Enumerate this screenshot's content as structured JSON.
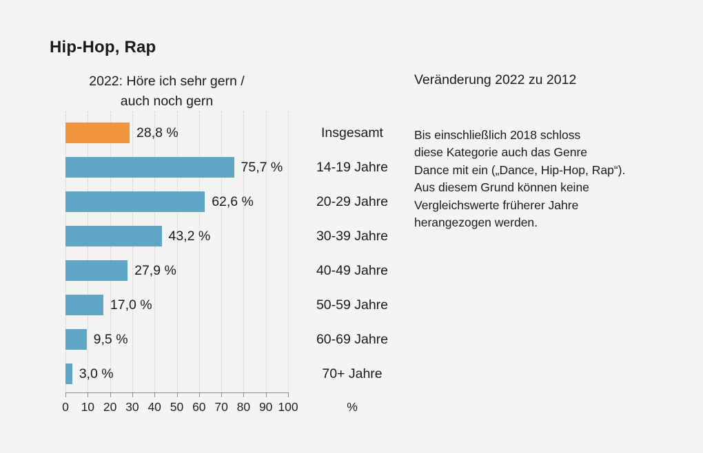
{
  "title": "Hip-Hop, Rap",
  "subtitle": "2022: Höre ich sehr gern /\nauch noch gern",
  "right_panel": {
    "heading": "Veränderung 2022 zu 2012",
    "note": "Bis einschließlich 2018 schloss\ndiese Kategorie auch das Genre\nDance mit ein („Dance, Hip-Hop, Rap“).\nAus diesem Grund können keine\nVergleichswerte früherer Jahre\nherangezogen werden."
  },
  "chart_data": {
    "type": "bar",
    "orientation": "horizontal",
    "title": "Hip-Hop, Rap",
    "subtitle": "2022: Höre ich sehr gern / auch noch gern",
    "categories": [
      "Insgesamt",
      "14-19 Jahre",
      "20-29 Jahre",
      "30-39 Jahre",
      "40-49 Jahre",
      "50-59 Jahre",
      "60-69 Jahre",
      "70+ Jahre"
    ],
    "values": [
      28.8,
      75.7,
      62.6,
      43.2,
      27.9,
      17.0,
      9.5,
      3.0
    ],
    "value_labels": [
      "28,8 %",
      "75,7 %",
      "62,6 %",
      "43,2 %",
      "27,9 %",
      "17,0 %",
      "9,5 %",
      "3,0 %"
    ],
    "highlight_index": 0,
    "xlim": [
      0,
      100
    ],
    "xticks": [
      0,
      10,
      20,
      30,
      40,
      50,
      60,
      70,
      80,
      90,
      100
    ],
    "unit_label": "%",
    "grid": true,
    "legend": "none"
  },
  "colors": {
    "background": "#f4f4f2",
    "bar_default": "#5fa5c5",
    "bar_highlight": "#f0953e",
    "text": "#1a1a1a",
    "gridline": "#cbcbc9",
    "axis": "#8d8d8b"
  }
}
